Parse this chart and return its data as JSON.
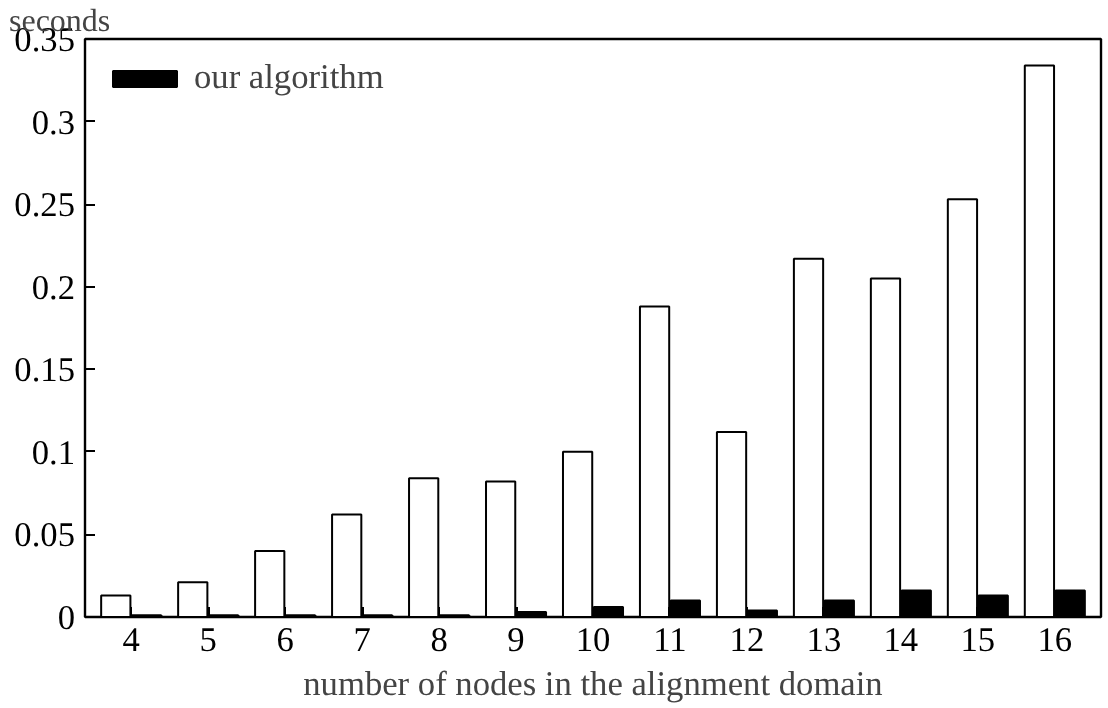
{
  "chart_data": {
    "type": "bar",
    "ylabel": "seconds",
    "xlabel": "number of nodes in the alignment domain",
    "categories": [
      "4",
      "5",
      "6",
      "7",
      "8",
      "9",
      "10",
      "11",
      "12",
      "13",
      "14",
      "15",
      "16"
    ],
    "series": [
      {
        "color": "#ffffff",
        "values": [
          0.013,
          0.021,
          0.04,
          0.062,
          0.084,
          0.082,
          0.1,
          0.188,
          0.112,
          0.217,
          0.205,
          0.253,
          0.334
        ]
      },
      {
        "name": "our algorithm",
        "color": "#000000",
        "values": [
          0.001,
          0.001,
          0.001,
          0.001,
          0.001,
          0.003,
          0.006,
          0.01,
          0.004,
          0.01,
          0.016,
          0.013,
          0.016
        ]
      }
    ],
    "ylim": [
      0,
      0.35
    ],
    "yticks": [
      0,
      0.05,
      0.1,
      0.15,
      0.2,
      0.25,
      0.3,
      0.35
    ],
    "grid": false,
    "legend": "top left"
  }
}
